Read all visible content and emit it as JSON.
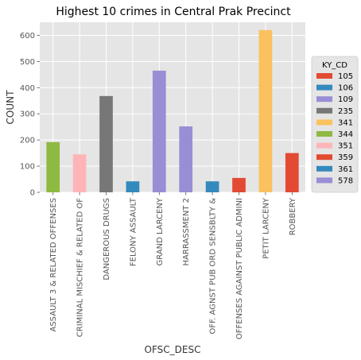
{
  "chart_data": {
    "type": "bar",
    "title": "Highest 10 crimes in Central Prak Precinct",
    "xlabel": "OFSC_DESC",
    "ylabel": "COUNT",
    "ylim": [
      0,
      650
    ],
    "yticks": [
      0,
      100,
      200,
      300,
      400,
      500,
      600
    ],
    "grid": true,
    "stacked": true,
    "categories": [
      "ASSAULT 3 & RELATED OFFENSES",
      "CRIMINAL MISCHIEF & RELATED OF",
      "DANGEROUS DRUGS",
      "FELONY ASSAULT",
      "GRAND LARCENY",
      "HARRASSMENT 2",
      "OFF. AGNST PUB ORD SENSBLTY &",
      "OFFENSES AGAINST PUBLIC ADMINI",
      "PETIT LARCENY",
      "ROBBERY"
    ],
    "series": [
      {
        "name": "105",
        "color": "#e24a33",
        "values": [
          0,
          0,
          0,
          0,
          0,
          0,
          0,
          0,
          0,
          150
        ]
      },
      {
        "name": "106",
        "color": "#348abd",
        "values": [
          0,
          0,
          0,
          42,
          0,
          0,
          0,
          0,
          0,
          0
        ]
      },
      {
        "name": "109",
        "color": "#988ed5",
        "values": [
          0,
          0,
          0,
          0,
          465,
          0,
          0,
          0,
          0,
          0
        ]
      },
      {
        "name": "235",
        "color": "#777777",
        "values": [
          0,
          0,
          368,
          0,
          0,
          0,
          0,
          0,
          0,
          0
        ]
      },
      {
        "name": "341",
        "color": "#fbc15e",
        "values": [
          0,
          0,
          0,
          0,
          0,
          0,
          0,
          0,
          620,
          0
        ]
      },
      {
        "name": "344",
        "color": "#8eba42",
        "values": [
          192,
          0,
          0,
          0,
          0,
          0,
          0,
          0,
          0,
          0
        ]
      },
      {
        "name": "351",
        "color": "#ffb5b8",
        "values": [
          0,
          145,
          0,
          0,
          0,
          0,
          0,
          0,
          0,
          0
        ]
      },
      {
        "name": "359",
        "color": "#e24a33",
        "values": [
          0,
          0,
          0,
          0,
          0,
          0,
          0,
          55,
          0,
          0
        ]
      },
      {
        "name": "361",
        "color": "#348abd",
        "values": [
          0,
          0,
          0,
          0,
          0,
          0,
          42,
          0,
          0,
          0
        ]
      },
      {
        "name": "578",
        "color": "#988ed5",
        "values": [
          0,
          0,
          0,
          0,
          0,
          252,
          0,
          0,
          0,
          0
        ]
      }
    ],
    "legend": {
      "title": "KY_CD",
      "placement": "right"
    }
  }
}
